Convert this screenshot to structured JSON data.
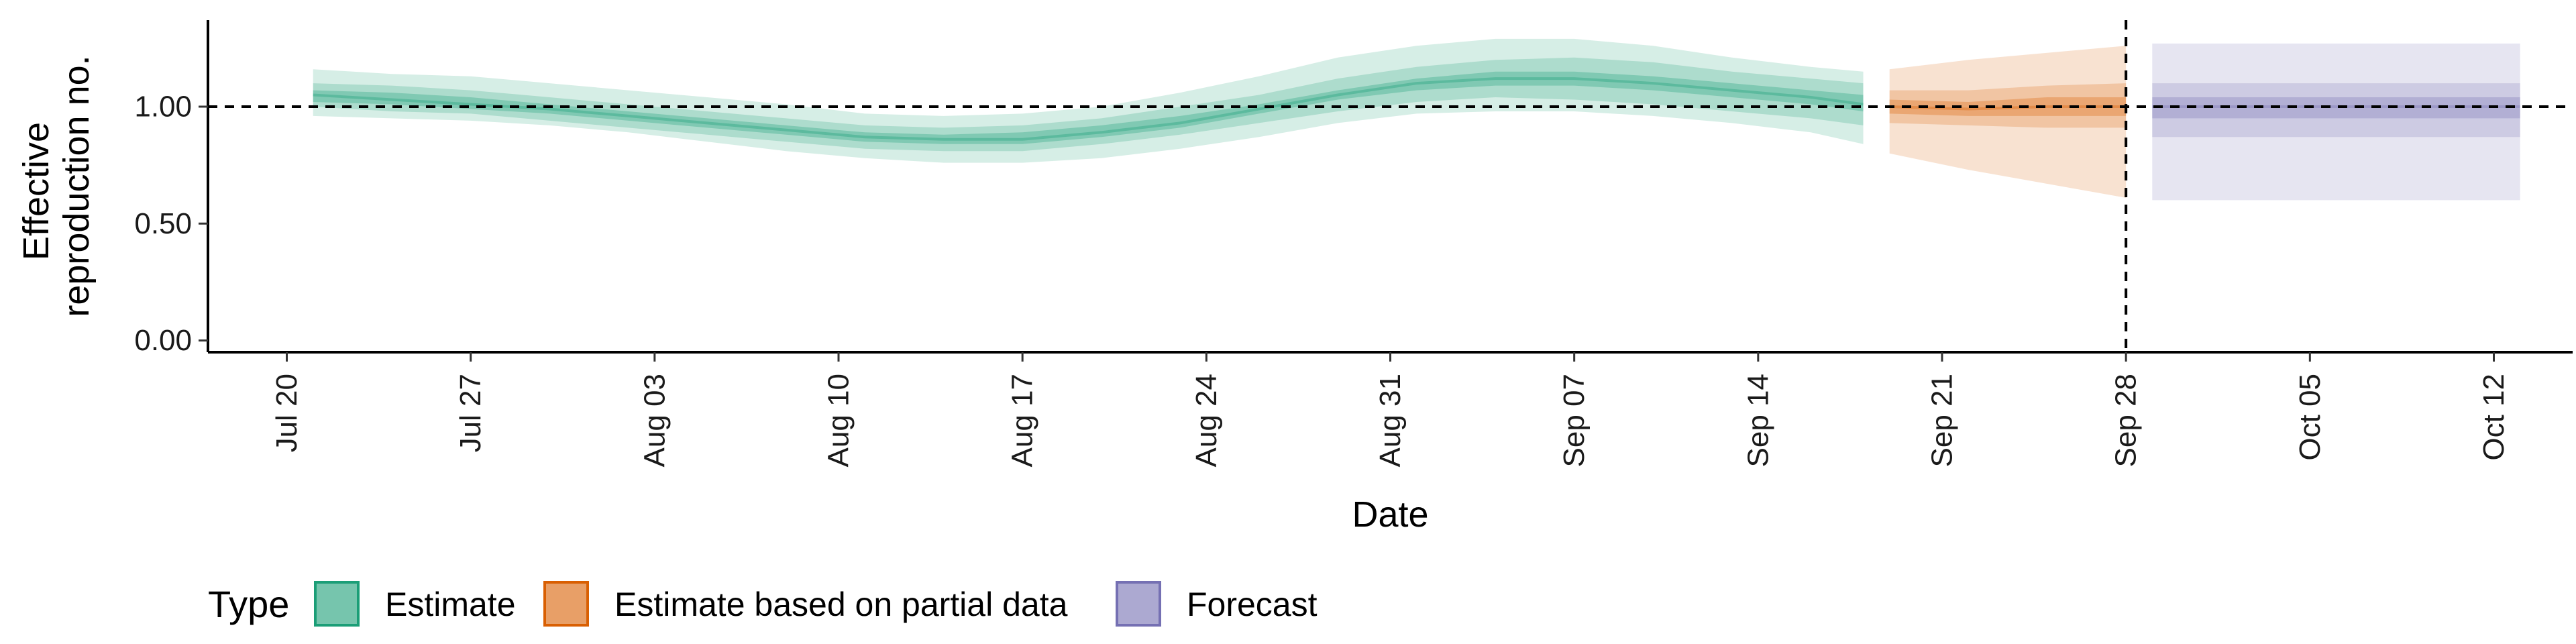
{
  "chart_data": {
    "type": "area",
    "title": "",
    "xlabel": "Date",
    "ylabel": "Effective reproduction no.",
    "ylabel_lines": [
      "Effective",
      "reproduction no."
    ],
    "x_ticks": [
      "2020-07-20",
      "2020-07-27",
      "2020-08-03",
      "2020-08-10",
      "2020-08-17",
      "2020-08-24",
      "2020-08-31",
      "2020-09-07",
      "2020-09-14",
      "2020-09-21",
      "2020-09-28",
      "2020-10-05",
      "2020-10-12"
    ],
    "x_tick_labels": [
      "Jul 20",
      "Jul 27",
      "Aug 03",
      "Aug 10",
      "Aug 17",
      "Aug 24",
      "Aug 31",
      "Sep 07",
      "Sep 14",
      "Sep 21",
      "Sep 28",
      "Oct 05",
      "Oct 12"
    ],
    "xlim": [
      "2020-07-17",
      "2020-10-15"
    ],
    "y_ticks": [
      0,
      0.5,
      1,
      1.5
    ],
    "y_tick_labels": [
      "0.00",
      "0.50",
      "1.00",
      ""
    ],
    "ylim": [
      -0.05,
      1.37
    ],
    "reference_line_y": 1.0,
    "reference_line_x": "2020-09-28",
    "grid": false,
    "legend": {
      "title": "Type",
      "position": "bottom-left",
      "entries": [
        "Estimate",
        "Estimate based on partial data",
        "Forecast"
      ]
    },
    "colors": {
      "Estimate": "#1b9e77",
      "Estimate based on partial data": "#d95f02",
      "Forecast": "#7570b3"
    },
    "series": [
      {
        "name": "Estimate",
        "x": [
          "2020-07-21",
          "2020-07-24",
          "2020-07-27",
          "2020-07-30",
          "2020-08-02",
          "2020-08-05",
          "2020-08-08",
          "2020-08-11",
          "2020-08-14",
          "2020-08-17",
          "2020-08-20",
          "2020-08-23",
          "2020-08-26",
          "2020-08-29",
          "2020-09-01",
          "2020-09-04",
          "2020-09-07",
          "2020-09-10",
          "2020-09-13",
          "2020-09-16",
          "2020-09-18"
        ],
        "median": [
          1.05,
          1.03,
          1.01,
          0.99,
          0.96,
          0.93,
          0.9,
          0.87,
          0.86,
          0.86,
          0.89,
          0.93,
          0.99,
          1.05,
          1.1,
          1.12,
          1.12,
          1.1,
          1.07,
          1.04,
          1.01
        ],
        "lower_25": [
          1.02,
          1.01,
          0.99,
          0.97,
          0.94,
          0.91,
          0.88,
          0.85,
          0.84,
          0.84,
          0.87,
          0.91,
          0.97,
          1.03,
          1.07,
          1.09,
          1.09,
          1.07,
          1.04,
          1.01,
          0.98
        ],
        "upper_25": [
          1.07,
          1.06,
          1.04,
          1.01,
          0.98,
          0.95,
          0.92,
          0.89,
          0.88,
          0.89,
          0.92,
          0.96,
          1.01,
          1.07,
          1.12,
          1.15,
          1.15,
          1.13,
          1.1,
          1.07,
          1.05
        ],
        "lower_50": [
          1.0,
          0.98,
          0.97,
          0.94,
          0.91,
          0.88,
          0.85,
          0.82,
          0.81,
          0.81,
          0.84,
          0.88,
          0.93,
          0.98,
          1.02,
          1.04,
          1.03,
          1.01,
          0.98,
          0.95,
          0.92
        ],
        "upper_50": [
          1.1,
          1.09,
          1.07,
          1.04,
          1.01,
          0.98,
          0.95,
          0.92,
          0.91,
          0.92,
          0.95,
          1.0,
          1.05,
          1.12,
          1.17,
          1.2,
          1.21,
          1.19,
          1.15,
          1.12,
          1.1
        ],
        "lower_90": [
          0.96,
          0.95,
          0.94,
          0.92,
          0.89,
          0.85,
          0.81,
          0.78,
          0.76,
          0.76,
          0.78,
          0.82,
          0.87,
          0.93,
          0.97,
          0.98,
          0.98,
          0.96,
          0.93,
          0.89,
          0.84
        ],
        "upper_90": [
          1.16,
          1.14,
          1.13,
          1.1,
          1.07,
          1.04,
          1.01,
          0.97,
          0.96,
          0.97,
          1.0,
          1.06,
          1.13,
          1.21,
          1.26,
          1.29,
          1.29,
          1.26,
          1.21,
          1.17,
          1.15
        ]
      },
      {
        "name": "Estimate based on partial data",
        "x": [
          "2020-09-19",
          "2020-09-22",
          "2020-09-25",
          "2020-09-28"
        ],
        "median": [
          1.0,
          0.99,
          1.0,
          1.0
        ],
        "lower_25": [
          0.97,
          0.96,
          0.96,
          0.96
        ],
        "upper_25": [
          1.03,
          1.02,
          1.04,
          1.04
        ],
        "lower_50": [
          0.93,
          0.92,
          0.91,
          0.91
        ],
        "upper_50": [
          1.07,
          1.07,
          1.09,
          1.1
        ],
        "lower_90": [
          0.8,
          0.73,
          0.67,
          0.61
        ],
        "upper_90": [
          1.16,
          1.2,
          1.23,
          1.26
        ]
      },
      {
        "name": "Forecast",
        "x": [
          "2020-09-29",
          "2020-10-13"
        ],
        "median": [
          1.0,
          1.0
        ],
        "lower_25": [
          0.95,
          0.95
        ],
        "upper_25": [
          1.04,
          1.04
        ],
        "lower_50": [
          0.87,
          0.87
        ],
        "upper_50": [
          1.1,
          1.1
        ],
        "lower_90": [
          0.6,
          0.6
        ],
        "upper_90": [
          1.27,
          1.27
        ]
      }
    ]
  }
}
